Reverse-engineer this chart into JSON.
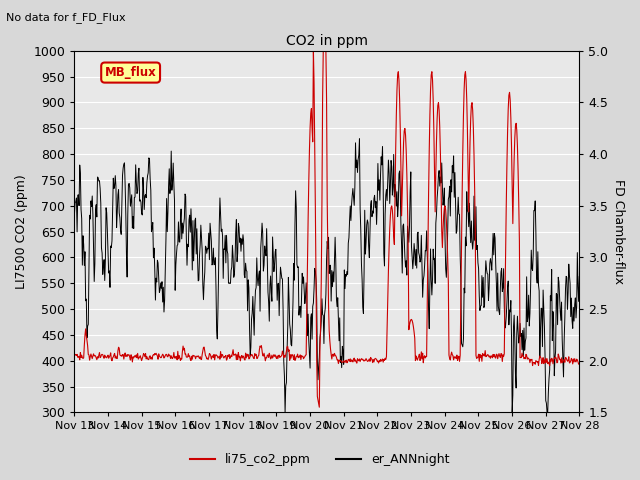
{
  "title": "CO2 in ppm",
  "subtitle": "No data for f_FD_Flux",
  "ylabel_left": "LI7500 CO2 (ppm)",
  "ylabel_right": "FD Chamber-flux",
  "ylim_left": [
    300,
    1000
  ],
  "ylim_right": [
    1.5,
    5.0
  ],
  "yticks_left": [
    300,
    350,
    400,
    450,
    500,
    550,
    600,
    650,
    700,
    750,
    800,
    850,
    900,
    950,
    1000
  ],
  "yticks_right": [
    1.5,
    2.0,
    2.5,
    3.0,
    3.5,
    4.0,
    4.5,
    5.0
  ],
  "xtick_labels": [
    "Nov 13",
    "Nov 14",
    "Nov 15",
    "Nov 16",
    "Nov 17",
    "Nov 18",
    "Nov 19",
    "Nov 20",
    "Nov 21",
    "Nov 22",
    "Nov 23",
    "Nov 24",
    "Nov 25",
    "Nov 26",
    "Nov 27",
    "Nov 28"
  ],
  "legend_box_label": "MB_flux",
  "legend_box_color": "#ffff99",
  "legend_box_edge": "#cc0000",
  "line1_color": "#cc0000",
  "line1_label": "li75_co2_ppm",
  "line2_color": "#000000",
  "line2_label": "er_ANNnight",
  "bg_color": "#d8d8d8",
  "plot_bg": "#e8e8e8",
  "grid_color": "#ffffff",
  "fontsize": 9
}
